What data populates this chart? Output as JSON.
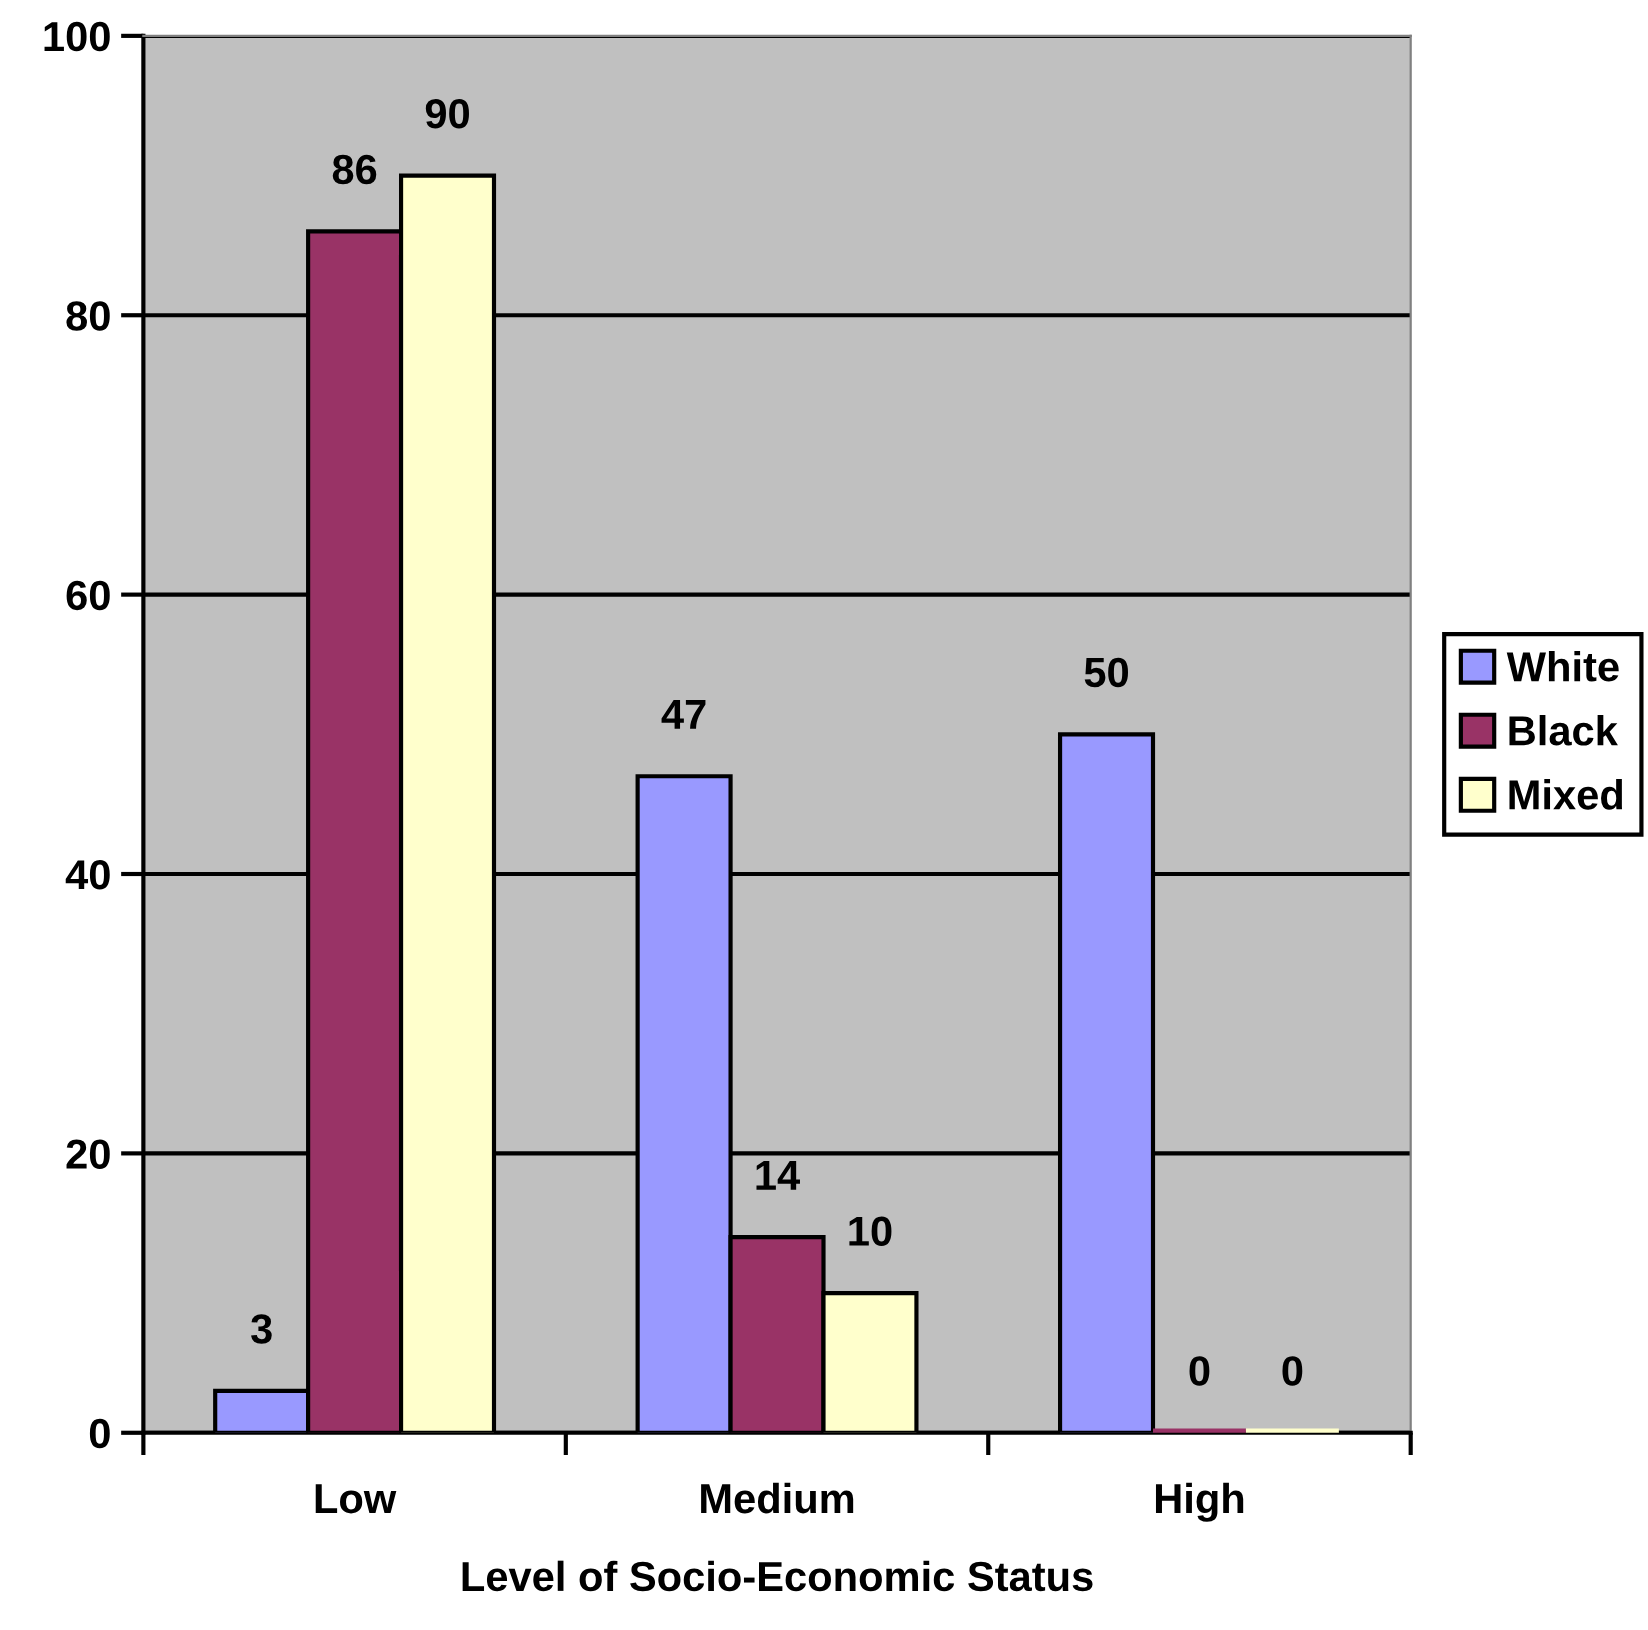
{
  "chart_data": {
    "type": "bar",
    "xlabel": "Level of Socio-Economic Status",
    "categories": [
      "Low",
      "Medium",
      "High"
    ],
    "series": [
      {
        "name": "White",
        "color": "#9999ff",
        "values": [
          3,
          47,
          50
        ]
      },
      {
        "name": "Black",
        "color": "#993366",
        "values": [
          86,
          14,
          0
        ]
      },
      {
        "name": "Mixed",
        "color": "#ffffcc",
        "values": [
          90,
          10,
          0
        ]
      }
    ],
    "ylim": [
      0,
      100
    ],
    "yticks": [
      0,
      20,
      40,
      60,
      80,
      100
    ],
    "grid": "y",
    "legend": "right",
    "data_labels": true
  }
}
